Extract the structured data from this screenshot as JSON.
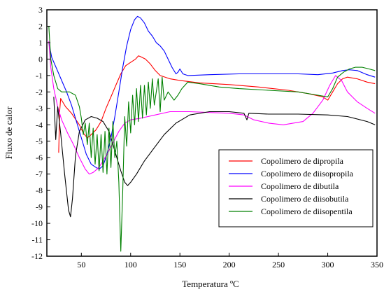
{
  "chart_data": {
    "type": "line",
    "title": "",
    "xlabel": "Temperatura ºC",
    "ylabel": "Fluxo de calor",
    "xlim": [
      15,
      350
    ],
    "ylim": [
      -12,
      3
    ],
    "x_ticks": [
      50,
      100,
      150,
      200,
      250,
      300,
      350
    ],
    "y_ticks": [
      3,
      2,
      1,
      0,
      -1,
      -2,
      -3,
      -4,
      -5,
      -6,
      -7,
      -8,
      -9,
      -10,
      -11,
      -12
    ],
    "grid": false,
    "legend_position": "bottom-right",
    "series": [
      {
        "name": "Copolimero de dipropila",
        "color": "#ff0000",
        "points": [
          [
            27,
            -5.7
          ],
          [
            28,
            -3.2
          ],
          [
            29,
            -2.4
          ],
          [
            31,
            -2.6
          ],
          [
            34,
            -2.9
          ],
          [
            40,
            -3.3
          ],
          [
            48,
            -4.0
          ],
          [
            52,
            -4.5
          ],
          [
            56,
            -4.8
          ],
          [
            60,
            -4.6
          ],
          [
            65,
            -4.3
          ],
          [
            70,
            -3.8
          ],
          [
            75,
            -3.0
          ],
          [
            80,
            -2.3
          ],
          [
            85,
            -1.6
          ],
          [
            90,
            -0.9
          ],
          [
            95,
            -0.4
          ],
          [
            100,
            -0.2
          ],
          [
            105,
            0.0
          ],
          [
            108,
            0.2
          ],
          [
            110,
            0.15
          ],
          [
            115,
            0.0
          ],
          [
            120,
            -0.3
          ],
          [
            125,
            -0.7
          ],
          [
            130,
            -1.0
          ],
          [
            140,
            -1.2
          ],
          [
            150,
            -1.3
          ],
          [
            170,
            -1.45
          ],
          [
            200,
            -1.55
          ],
          [
            230,
            -1.7
          ],
          [
            260,
            -1.9
          ],
          [
            280,
            -2.1
          ],
          [
            295,
            -2.3
          ],
          [
            300,
            -2.5
          ],
          [
            305,
            -2.0
          ],
          [
            310,
            -1.5
          ],
          [
            315,
            -1.2
          ],
          [
            320,
            -1.1
          ],
          [
            330,
            -1.2
          ],
          [
            340,
            -1.4
          ],
          [
            348,
            -1.5
          ]
        ]
      },
      {
        "name": "Copolimero de diisopropila",
        "color": "#0000ff",
        "points": [
          [
            17,
            1.0
          ],
          [
            20,
            0.1
          ],
          [
            25,
            -0.6
          ],
          [
            30,
            -1.3
          ],
          [
            35,
            -2.0
          ],
          [
            40,
            -2.8
          ],
          [
            45,
            -3.8
          ],
          [
            50,
            -4.8
          ],
          [
            55,
            -5.8
          ],
          [
            60,
            -6.4
          ],
          [
            65,
            -6.6
          ],
          [
            68,
            -6.7
          ],
          [
            72,
            -6.5
          ],
          [
            76,
            -5.8
          ],
          [
            80,
            -4.8
          ],
          [
            84,
            -3.5
          ],
          [
            88,
            -2.0
          ],
          [
            92,
            -0.5
          ],
          [
            96,
            0.8
          ],
          [
            100,
            1.8
          ],
          [
            104,
            2.4
          ],
          [
            107,
            2.6
          ],
          [
            110,
            2.5
          ],
          [
            114,
            2.2
          ],
          [
            118,
            1.7
          ],
          [
            122,
            1.4
          ],
          [
            126,
            1.0
          ],
          [
            130,
            0.8
          ],
          [
            134,
            0.5
          ],
          [
            138,
            0.0
          ],
          [
            142,
            -0.5
          ],
          [
            146,
            -0.9
          ],
          [
            148,
            -0.8
          ],
          [
            150,
            -0.6
          ],
          [
            153,
            -0.9
          ],
          [
            158,
            -1.0
          ],
          [
            180,
            -0.95
          ],
          [
            210,
            -0.9
          ],
          [
            240,
            -0.9
          ],
          [
            270,
            -0.9
          ],
          [
            290,
            -0.95
          ],
          [
            305,
            -0.85
          ],
          [
            315,
            -0.7
          ],
          [
            322,
            -0.65
          ],
          [
            330,
            -0.7
          ],
          [
            340,
            -0.95
          ],
          [
            348,
            -1.1
          ]
        ]
      },
      {
        "name": "Copolimero de dibutila",
        "color": "#ff00ff",
        "points": [
          [
            17,
            1.1
          ],
          [
            19,
            -0.5
          ],
          [
            22,
            -1.8
          ],
          [
            26,
            -2.9
          ],
          [
            30,
            -3.7
          ],
          [
            36,
            -4.5
          ],
          [
            42,
            -5.2
          ],
          [
            48,
            -6.0
          ],
          [
            54,
            -6.7
          ],
          [
            58,
            -7.0
          ],
          [
            62,
            -6.9
          ],
          [
            66,
            -6.7
          ],
          [
            70,
            -6.4
          ],
          [
            76,
            -5.8
          ],
          [
            82,
            -5.1
          ],
          [
            88,
            -4.4
          ],
          [
            94,
            -3.9
          ],
          [
            100,
            -3.7
          ],
          [
            110,
            -3.6
          ],
          [
            125,
            -3.4
          ],
          [
            140,
            -3.2
          ],
          [
            160,
            -3.2
          ],
          [
            180,
            -3.25
          ],
          [
            200,
            -3.3
          ],
          [
            215,
            -3.4
          ],
          [
            225,
            -3.7
          ],
          [
            240,
            -3.9
          ],
          [
            255,
            -4.0
          ],
          [
            265,
            -3.9
          ],
          [
            275,
            -3.8
          ],
          [
            285,
            -3.3
          ],
          [
            295,
            -2.5
          ],
          [
            302,
            -1.6
          ],
          [
            308,
            -1.0
          ],
          [
            314,
            -1.3
          ],
          [
            320,
            -2.0
          ],
          [
            330,
            -2.6
          ],
          [
            340,
            -3.0
          ],
          [
            348,
            -3.3
          ]
        ]
      },
      {
        "name": "Copolimero de diisobutila",
        "color": "#000000",
        "points": [
          [
            22,
            -2.3
          ],
          [
            24,
            -4.9
          ],
          [
            26,
            -2.9
          ],
          [
            29,
            -4.5
          ],
          [
            33,
            -7.0
          ],
          [
            37,
            -9.2
          ],
          [
            39,
            -9.6
          ],
          [
            41,
            -8.5
          ],
          [
            44,
            -5.9
          ],
          [
            48,
            -4.4
          ],
          [
            54,
            -3.7
          ],
          [
            60,
            -3.5
          ],
          [
            66,
            -3.6
          ],
          [
            72,
            -3.8
          ],
          [
            78,
            -4.4
          ],
          [
            84,
            -5.6
          ],
          [
            90,
            -6.8
          ],
          [
            94,
            -7.5
          ],
          [
            97,
            -7.7
          ],
          [
            100,
            -7.5
          ],
          [
            106,
            -7.0
          ],
          [
            114,
            -6.2
          ],
          [
            124,
            -5.4
          ],
          [
            134,
            -4.6
          ],
          [
            146,
            -3.9
          ],
          [
            160,
            -3.4
          ],
          [
            180,
            -3.2
          ],
          [
            200,
            -3.2
          ],
          [
            215,
            -3.3
          ],
          [
            218,
            -3.7
          ],
          [
            220,
            -3.3
          ],
          [
            240,
            -3.35
          ],
          [
            270,
            -3.35
          ],
          [
            300,
            -3.4
          ],
          [
            320,
            -3.5
          ],
          [
            340,
            -3.8
          ],
          [
            348,
            -4.0
          ]
        ]
      },
      {
        "name": "Copolimero de diisopentila",
        "color": "#008000",
        "points": [
          [
            17,
            2.0
          ],
          [
            19,
            0.0
          ],
          [
            22,
            -1.0
          ],
          [
            26,
            -1.8
          ],
          [
            30,
            -2.0
          ],
          [
            38,
            -2.0
          ],
          [
            44,
            -2.2
          ],
          [
            48,
            -2.9
          ],
          [
            50,
            -3.6
          ],
          [
            52,
            -4.6
          ],
          [
            54,
            -3.9
          ],
          [
            56,
            -5.2
          ],
          [
            58,
            -3.9
          ],
          [
            60,
            -6.0
          ],
          [
            62,
            -4.2
          ],
          [
            64,
            -6.4
          ],
          [
            66,
            -4.6
          ],
          [
            68,
            -6.8
          ],
          [
            70,
            -4.6
          ],
          [
            72,
            -6.9
          ],
          [
            74,
            -4.4
          ],
          [
            76,
            -7.0
          ],
          [
            78,
            -4.2
          ],
          [
            80,
            -6.6
          ],
          [
            82,
            -3.8
          ],
          [
            84,
            -6.0
          ],
          [
            86,
            -5.0
          ],
          [
            88,
            -7.5
          ],
          [
            90,
            -11.7
          ],
          [
            92,
            -8.0
          ],
          [
            94,
            -3.5
          ],
          [
            96,
            -5.3
          ],
          [
            98,
            -2.6
          ],
          [
            100,
            -4.5
          ],
          [
            102,
            -2.2
          ],
          [
            104,
            -4.0
          ],
          [
            106,
            -1.8
          ],
          [
            108,
            -3.8
          ],
          [
            110,
            -1.6
          ],
          [
            112,
            -3.6
          ],
          [
            114,
            -1.6
          ],
          [
            116,
            -3.4
          ],
          [
            118,
            -1.4
          ],
          [
            120,
            -3.0
          ],
          [
            122,
            -1.2
          ],
          [
            124,
            -2.8
          ],
          [
            128,
            -1.2
          ],
          [
            130,
            -3.2
          ],
          [
            132,
            -1.1
          ],
          [
            134,
            -2.5
          ],
          [
            138,
            -2.0
          ],
          [
            144,
            -2.5
          ],
          [
            148,
            -2.2
          ],
          [
            152,
            -1.8
          ],
          [
            158,
            -1.4
          ],
          [
            170,
            -1.5
          ],
          [
            190,
            -1.7
          ],
          [
            210,
            -1.8
          ],
          [
            240,
            -1.9
          ],
          [
            270,
            -2.0
          ],
          [
            290,
            -2.2
          ],
          [
            300,
            -2.3
          ],
          [
            305,
            -1.8
          ],
          [
            310,
            -1.1
          ],
          [
            316,
            -0.8
          ],
          [
            322,
            -0.6
          ],
          [
            328,
            -0.5
          ],
          [
            335,
            -0.5
          ],
          [
            342,
            -0.6
          ],
          [
            348,
            -0.7
          ]
        ]
      }
    ]
  }
}
